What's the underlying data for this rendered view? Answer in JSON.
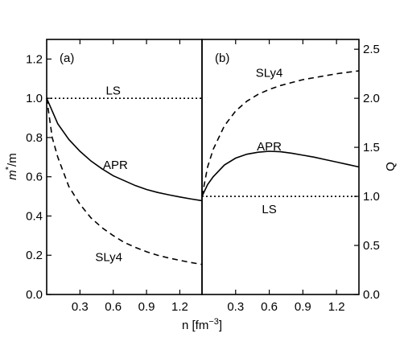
{
  "chart_data": [
    {
      "type": "line",
      "panel_label": "(a)",
      "xlabel": "n [fm",
      "xlabel_sup": "−3",
      "xlabel_tail": "]",
      "ylabel": "m",
      "ylabel_sup": "*",
      "ylabel_tail": "/m",
      "xlim": [
        0,
        1.4
      ],
      "ylim": [
        0,
        1.3
      ],
      "xticks": [
        "0.3",
        "0.6",
        "0.9",
        "1.2"
      ],
      "xtick_values": [
        0.3,
        0.6,
        0.9,
        1.2
      ],
      "yticks": [
        "0.0",
        "0.2",
        "0.4",
        "0.6",
        "0.8",
        "1.0",
        "1.2"
      ],
      "ytick_values": [
        0,
        0.2,
        0.4,
        0.6,
        0.8,
        1.0,
        1.2
      ],
      "series": [
        {
          "name": "LS",
          "style": "dotted",
          "x": [
            0,
            0.2,
            0.4,
            0.6,
            0.8,
            1.0,
            1.2,
            1.4
          ],
          "y": [
            1.0,
            1.0,
            1.0,
            1.0,
            1.0,
            1.0,
            1.0,
            1.0
          ],
          "label_at": [
            0.6,
            1.04
          ]
        },
        {
          "name": "APR",
          "style": "solid",
          "x": [
            0,
            0.1,
            0.2,
            0.3,
            0.4,
            0.5,
            0.6,
            0.7,
            0.8,
            0.9,
            1.0,
            1.1,
            1.2,
            1.3,
            1.4
          ],
          "y": [
            1.0,
            0.87,
            0.79,
            0.73,
            0.68,
            0.64,
            0.605,
            0.58,
            0.555,
            0.535,
            0.52,
            0.508,
            0.497,
            0.487,
            0.478
          ],
          "label_at": [
            0.62,
            0.66
          ]
        },
        {
          "name": "SLy4",
          "style": "dashed",
          "x": [
            0,
            0.05,
            0.1,
            0.2,
            0.3,
            0.4,
            0.5,
            0.6,
            0.7,
            0.8,
            0.9,
            1.0,
            1.1,
            1.2,
            1.3,
            1.4
          ],
          "y": [
            1.0,
            0.8,
            0.7,
            0.55,
            0.46,
            0.39,
            0.34,
            0.3,
            0.265,
            0.24,
            0.218,
            0.2,
            0.186,
            0.174,
            0.163,
            0.153
          ],
          "label_at": [
            0.56,
            0.19
          ]
        }
      ]
    },
    {
      "type": "line",
      "panel_label": "(b)",
      "ylabel": "Q",
      "xlim": [
        0,
        1.4
      ],
      "ylim": [
        0,
        2.6
      ],
      "xticks": [
        "0.3",
        "0.6",
        "0.9",
        "1.2"
      ],
      "xtick_values": [
        0.3,
        0.6,
        0.9,
        1.2
      ],
      "yticks": [
        "0.0",
        "0.5",
        "1.0",
        "1.5",
        "2.0",
        "2.5"
      ],
      "ytick_values": [
        0,
        0.5,
        1.0,
        1.5,
        2.0,
        2.5
      ],
      "series": [
        {
          "name": "LS",
          "style": "dotted",
          "x": [
            0,
            0.2,
            0.4,
            0.6,
            0.8,
            1.0,
            1.2,
            1.4
          ],
          "y": [
            1.0,
            1.0,
            1.0,
            1.0,
            1.0,
            1.0,
            1.0,
            1.0
          ],
          "label_at": [
            0.6,
            0.87
          ]
        },
        {
          "name": "APR",
          "style": "solid",
          "x": [
            0,
            0.05,
            0.1,
            0.2,
            0.3,
            0.4,
            0.5,
            0.6,
            0.7,
            0.8,
            0.9,
            1.0,
            1.1,
            1.2,
            1.3,
            1.4
          ],
          "y": [
            1.0,
            1.12,
            1.2,
            1.32,
            1.39,
            1.43,
            1.45,
            1.46,
            1.455,
            1.44,
            1.42,
            1.4,
            1.375,
            1.35,
            1.325,
            1.3
          ],
          "label_at": [
            0.6,
            1.51
          ]
        },
        {
          "name": "SLy4",
          "style": "dashed",
          "x": [
            0,
            0.05,
            0.1,
            0.2,
            0.3,
            0.4,
            0.5,
            0.6,
            0.7,
            0.8,
            0.9,
            1.0,
            1.1,
            1.2,
            1.3,
            1.4
          ],
          "y": [
            1.0,
            1.3,
            1.48,
            1.72,
            1.87,
            1.97,
            2.04,
            2.09,
            2.13,
            2.16,
            2.19,
            2.21,
            2.23,
            2.25,
            2.265,
            2.28
          ],
          "label_at": [
            0.6,
            2.26
          ]
        }
      ]
    }
  ]
}
